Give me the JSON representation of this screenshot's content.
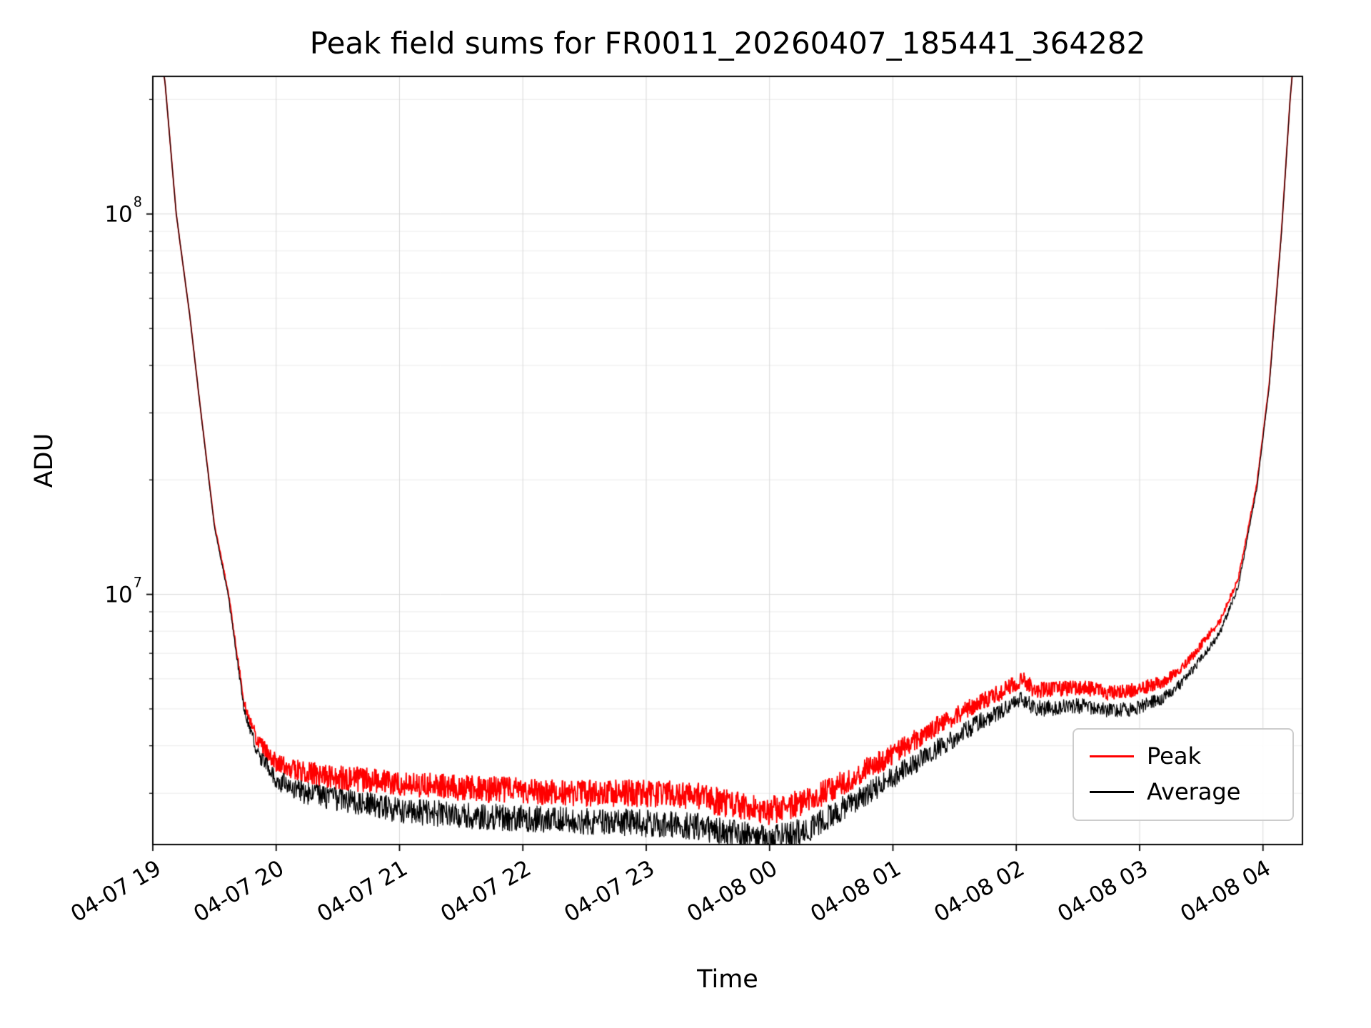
{
  "chart_data": {
    "type": "line",
    "title": "Peak field sums for FR0011_20260407_185441_364282",
    "xlabel": "Time",
    "ylabel": "ADU",
    "grid": true,
    "x_axis": {
      "tick_labels": [
        "04-07 19",
        "04-07 20",
        "04-07 21",
        "04-07 22",
        "04-07 23",
        "04-08 00",
        "04-08 01",
        "04-08 02",
        "04-08 03",
        "04-08 04"
      ],
      "tick_hours": [
        0,
        1,
        2,
        3,
        4,
        5,
        6,
        7,
        8,
        9
      ],
      "range_hours": [
        0,
        9.32
      ]
    },
    "y_axis": {
      "scale": "log",
      "ticks": [
        {
          "exponent": 7,
          "value": 10000000.0
        },
        {
          "exponent": 8,
          "value": 100000000.0
        }
      ],
      "range": [
        2200000.0,
        230000000.0
      ]
    },
    "series": [
      {
        "name": "Peak",
        "color": "#ff0000",
        "role": "upper noisy envelope"
      },
      {
        "name": "Average",
        "color": "#000000",
        "role": "lower noisy envelope"
      }
    ],
    "samples": {
      "comment": "x_hours measured from 04-07 19:00; ADU values read off the log axis",
      "x_hours": [
        0,
        0.1,
        0.19,
        0.3,
        0.38,
        0.5,
        0.61,
        0.74,
        0.85,
        1.0,
        1.25,
        1.5,
        2.0,
        2.5,
        3.0,
        3.5,
        4.0,
        4.4,
        4.7,
        5.0,
        5.3,
        5.6,
        6.0,
        6.4,
        6.7,
        6.9,
        7.05,
        7.15,
        7.35,
        7.55,
        7.75,
        7.95,
        8.2,
        8.35,
        8.5,
        8.65,
        8.8,
        8.95,
        9.05,
        9.15,
        9.22,
        9.3
      ],
      "average_adu": [
        400000000.0,
        220000000.0,
        100000000.0,
        54000000.0,
        32000000.0,
        15000000.0,
        10000000.0,
        5000000.0,
        3800000.0,
        3250000.0,
        3000000.0,
        2900000.0,
        2700000.0,
        2630000.0,
        2570000.0,
        2540000.0,
        2500000.0,
        2450000.0,
        2350000.0,
        2260000.0,
        2400000.0,
        2750000.0,
        3300000.0,
        4000000.0,
        4600000.0,
        5000000.0,
        5300000.0,
        5000000.0,
        5050000.0,
        5100000.0,
        4950000.0,
        5000000.0,
        5350000.0,
        5900000.0,
        6800000.0,
        7900000.0,
        10500000.0,
        19000000.0,
        35000000.0,
        89000000.0,
        200000000.0,
        400000000.0
      ],
      "peak_adu": [
        400000000.0,
        220000000.0,
        100000000.0,
        54000000.0,
        32000000.0,
        15200000.0,
        10200000.0,
        5200000.0,
        4100000.0,
        3600000.0,
        3400000.0,
        3300000.0,
        3200000.0,
        3100000.0,
        3050000.0,
        3000000.0,
        3000000.0,
        2950000.0,
        2800000.0,
        2700000.0,
        2850000.0,
        3200000.0,
        3800000.0,
        4600000.0,
        5200000.0,
        5600000.0,
        6000000.0,
        5600000.0,
        5650000.0,
        5700000.0,
        5500000.0,
        5600000.0,
        5900000.0,
        6400000.0,
        7400000.0,
        8500000.0,
        11000000.0,
        19500000.0,
        35500000.0,
        90000000.0,
        200000000.0,
        400000000.0
      ]
    },
    "noise_envelope_log10": [
      [
        0,
        0.002
      ],
      [
        0.5,
        0.004
      ],
      [
        0.7,
        0.02
      ],
      [
        0.9,
        0.05
      ],
      [
        1.2,
        0.065
      ],
      [
        1.6,
        0.07
      ],
      [
        2.5,
        0.075
      ],
      [
        4.0,
        0.078
      ],
      [
        5.0,
        0.08
      ],
      [
        5.6,
        0.07
      ],
      [
        6.2,
        0.06
      ],
      [
        6.8,
        0.05
      ],
      [
        7.4,
        0.045
      ],
      [
        8.0,
        0.04
      ],
      [
        8.4,
        0.03
      ],
      [
        8.7,
        0.018
      ],
      [
        8.95,
        0.008
      ],
      [
        9.1,
        0.003
      ],
      [
        9.32,
        0.002
      ]
    ],
    "legend": {
      "entries": [
        "Peak",
        "Average"
      ],
      "location": "lower right"
    },
    "colors": {
      "grid_major": "#d9d9d9",
      "grid_minor": "#ececec",
      "spine": "#000000"
    }
  }
}
